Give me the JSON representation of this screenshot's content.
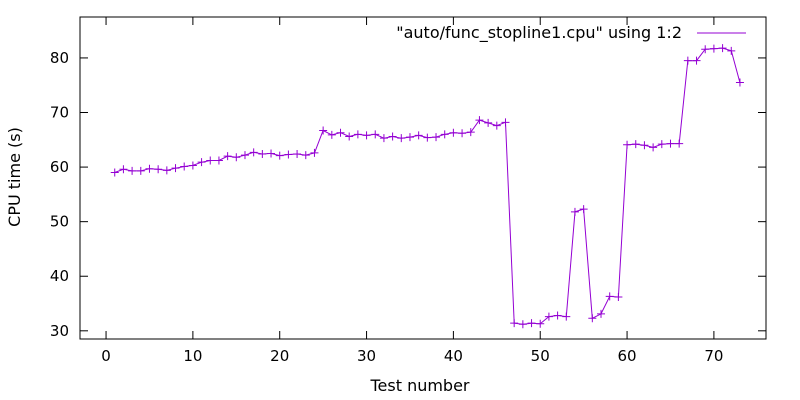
{
  "chart_data": {
    "type": "line",
    "xlabel": "Test number",
    "ylabel": "CPU time (s)",
    "xlim": [
      -3,
      76
    ],
    "ylim": [
      28.5,
      87.5
    ],
    "xticks": [
      0,
      10,
      20,
      30,
      40,
      50,
      60,
      70
    ],
    "yticks": [
      30,
      40,
      50,
      60,
      70,
      80
    ],
    "grid": false,
    "legend": {
      "placement": "top-right"
    },
    "series": [
      {
        "name": "\"auto/func_stopline1.cpu\" using 1:2",
        "color": "#9400d3",
        "marker": "plus",
        "x": [
          1,
          2,
          3,
          4,
          5,
          6,
          7,
          8,
          9,
          10,
          11,
          12,
          13,
          14,
          15,
          16,
          17,
          18,
          19,
          20,
          21,
          22,
          23,
          24,
          25,
          26,
          27,
          28,
          29,
          30,
          31,
          32,
          33,
          34,
          35,
          36,
          37,
          38,
          39,
          40,
          41,
          42,
          43,
          44,
          45,
          46,
          47,
          48,
          49,
          50,
          51,
          52,
          53,
          54,
          55,
          56,
          57,
          58,
          59,
          60,
          61,
          62,
          63,
          64,
          65,
          66,
          67,
          68,
          69,
          70,
          71,
          72,
          73
        ],
        "y": [
          59.0,
          59.6,
          59.3,
          59.3,
          59.7,
          59.6,
          59.4,
          59.8,
          60.1,
          60.3,
          60.9,
          61.2,
          61.2,
          62.0,
          61.8,
          62.2,
          62.7,
          62.4,
          62.5,
          62.1,
          62.3,
          62.4,
          62.2,
          62.6,
          66.7,
          65.9,
          66.3,
          65.6,
          66.0,
          65.8,
          66.0,
          65.3,
          65.6,
          65.3,
          65.5,
          65.8,
          65.4,
          65.5,
          66.0,
          66.3,
          66.2,
          66.4,
          68.6,
          68.1,
          67.6,
          68.2,
          31.4,
          31.2,
          31.4,
          31.3,
          32.6,
          32.8,
          32.6,
          51.8,
          52.3,
          32.3,
          33.1,
          36.3,
          36.2,
          64.1,
          64.2,
          64.0,
          63.6,
          64.2,
          64.3,
          64.3,
          79.5,
          79.5,
          81.6,
          81.7,
          81.8,
          81.3,
          75.5
        ]
      }
    ]
  }
}
